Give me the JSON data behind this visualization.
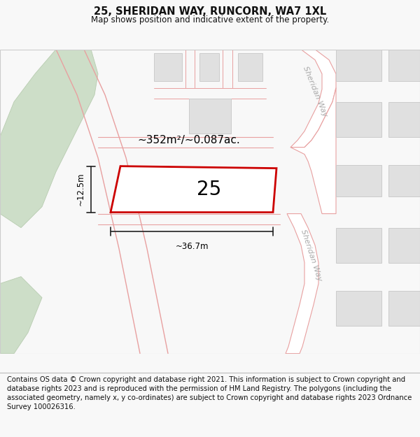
{
  "title": "25, SHERIDAN WAY, RUNCORN, WA7 1XL",
  "subtitle": "Map shows position and indicative extent of the property.",
  "footer": "Contains OS data © Crown copyright and database right 2021. This information is subject to Crown copyright and database rights 2023 and is reproduced with the permission of HM Land Registry. The polygons (including the associated geometry, namely x, y co-ordinates) are subject to Crown copyright and database rights 2023 Ordnance Survey 100026316.",
  "bg_color": "#f8f8f8",
  "map_bg": "#ffffff",
  "road_line_color": "#e8a0a0",
  "building_fill": "#e0e0e0",
  "building_edge": "#cccccc",
  "green_fill": "#cddec8",
  "green_edge": "#b8ccb0",
  "property_color": "#cc0000",
  "property_fill": "#ffffff",
  "dim_line_color": "#222222",
  "text_color": "#111111",
  "sheridan_color": "#aaaaaa",
  "annotation_area": "~352m²/~0.087ac.",
  "annotation_width": "~36.7m",
  "annotation_height": "~12.5m",
  "house_number": "25",
  "sheridan_label": "Sheridan Way",
  "title_fontsize": 10.5,
  "subtitle_fontsize": 8.5,
  "footer_fontsize": 7.2,
  "annot_fontsize": 11,
  "dim_fontsize": 8.5,
  "num_fontsize": 20
}
